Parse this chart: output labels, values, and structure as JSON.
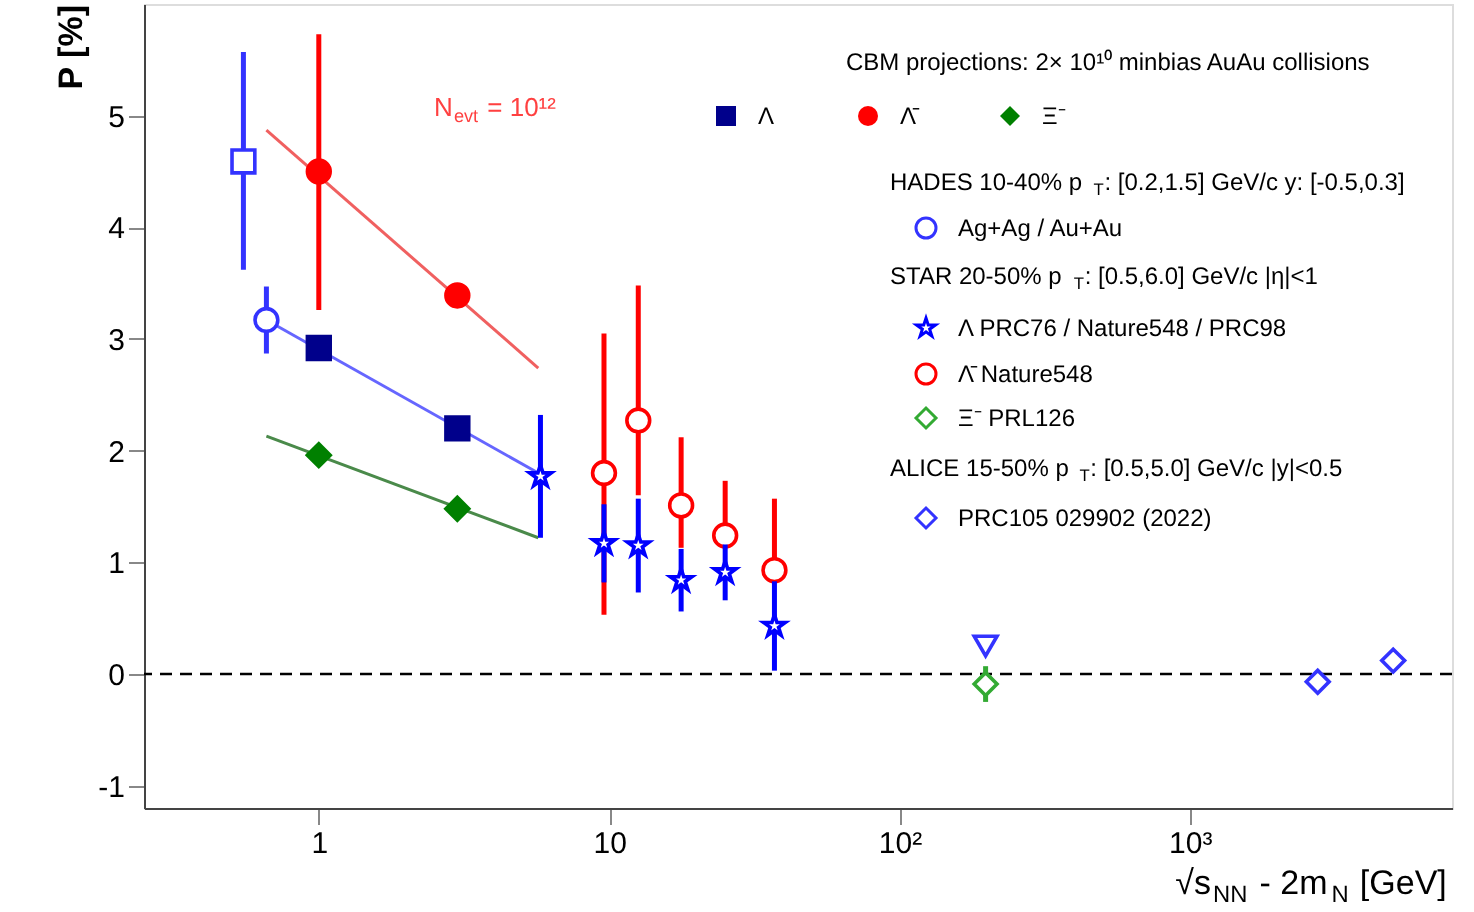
{
  "chart_data": {
    "type": "scatter",
    "xlabel": "√s$_{NN}$ - 2m$_{N}$ [GeV]",
    "ylabel": "P [%]",
    "xlim": [
      0.25,
      8000
    ],
    "ylim": [
      -1.2,
      6.0
    ],
    "log": "x",
    "xticks": [
      1,
      10,
      {
        "value": 100,
        "label": "10²"
      },
      {
        "value": 1000,
        "label": "10³"
      }
    ],
    "yticks": [
      -1,
      0,
      1,
      2,
      3,
      4,
      5
    ],
    "grid": false,
    "legend": "top right",
    "ref_lines": [
      {
        "axis": "y",
        "value": 0,
        "label": null,
        "color": "#000000",
        "line_style": "dashed"
      }
    ],
    "annotations": [
      "CBM projections: 2× 10¹⁰ minbias AuAu collisions",
      "HADES 10-40% p$_{T}$: [0.2,1.5] GeV/c y: [-0.5,0.3]",
      "STAR 20-50% p$_{T}$: [0.5,6.0] GeV/c |η|<1",
      "ALICE 15-50% p$_{T}$: [0.5,5.0] GeV/c |y|<0.5",
      "N$_{evt}$ = 10¹²"
    ],
    "series": [
      {
        "name": "Λ",
        "color": "#00008b",
        "marker": "square",
        "x": [
          1,
          3
        ],
        "values": [
          2.92,
          2.2
        ]
      },
      {
        "name": "Λ̄",
        "color": "#ff0000",
        "marker": "circle",
        "x": [
          1,
          3
        ],
        "values": [
          4.5,
          3.39
        ],
        "errors": [
          [
            3.26,
            5.73
          ],
          null
        ]
      },
      {
        "name": "Ξ⁻",
        "color": "#008000",
        "marker": "diamond",
        "x": [
          1,
          3
        ],
        "values": [
          1.96,
          1.48
        ]
      },
      {
        "name": "Ag+Ag / Au+Au",
        "color": "#3333ff",
        "marker": "circle",
        "x": [
          0.66
        ],
        "values": [
          3.17
        ],
        "errors": [
          0.3
        ]
      },
      {
        "name": "Λ  PRC76 / Nature548 / PRC98",
        "color": "#0000ff",
        "marker": "star",
        "x": [
          5.8,
          9.6,
          12.6,
          17.7,
          25.1,
          37.1
        ],
        "values": [
          1.77,
          1.17,
          1.15,
          0.84,
          0.91,
          0.43
        ],
        "errors": [
          0.55,
          0.35,
          0.42,
          0.28,
          0.25,
          0.4
        ]
      },
      {
        "name": "Λ̄ Nature548",
        "color": "#ff0000",
        "marker": "circle",
        "x": [
          9.6,
          12.6,
          17.7,
          25.1,
          37.1
        ],
        "values": [
          1.8,
          2.27,
          1.51,
          1.24,
          0.93
        ],
        "errors": [
          [
            0.53,
            3.05
          ],
          [
            1.6,
            3.48
          ],
          [
            1.13,
            2.12
          ],
          [
            1.2,
            1.73
          ],
          [
            0.88,
            1.57
          ]
        ]
      },
      {
        "name": "Ξ⁻ PRL126",
        "color": "#33aa33",
        "marker": "diamond",
        "x": [
          198
        ],
        "values": [
          -0.09
        ],
        "errors": [
          0.16
        ]
      },
      {
        "name": "PRC105 029902 (2022)",
        "color": "#3333ff",
        "marker": "diamond",
        "x": [
          2758,
          5018
        ],
        "values": [
          -0.07,
          0.12
        ]
      },
      {
        "color": "#3333ff",
        "marker": "square",
        "x": [
          0.55
        ],
        "values": [
          4.59
        ],
        "errors": [
          [
            3.62,
            5.57
          ]
        ]
      },
      {
        "color": "#3333ff",
        "marker": "triangle",
        "x": [
          198
        ],
        "values": [
          0.25
        ]
      },
      {
        "type": "line",
        "color": "#f06060",
        "x": [
          0.66,
          5.7
        ],
        "values": [
          4.87,
          2.74
        ]
      },
      {
        "type": "line",
        "color": "#6666ff",
        "x": [
          0.66,
          5.7
        ],
        "values": [
          3.17,
          1.8
        ]
      },
      {
        "type": "line",
        "color": "#4a8a4a",
        "x": [
          0.66,
          5.7
        ],
        "values": [
          2.13,
          1.22
        ]
      }
    ]
  }
}
